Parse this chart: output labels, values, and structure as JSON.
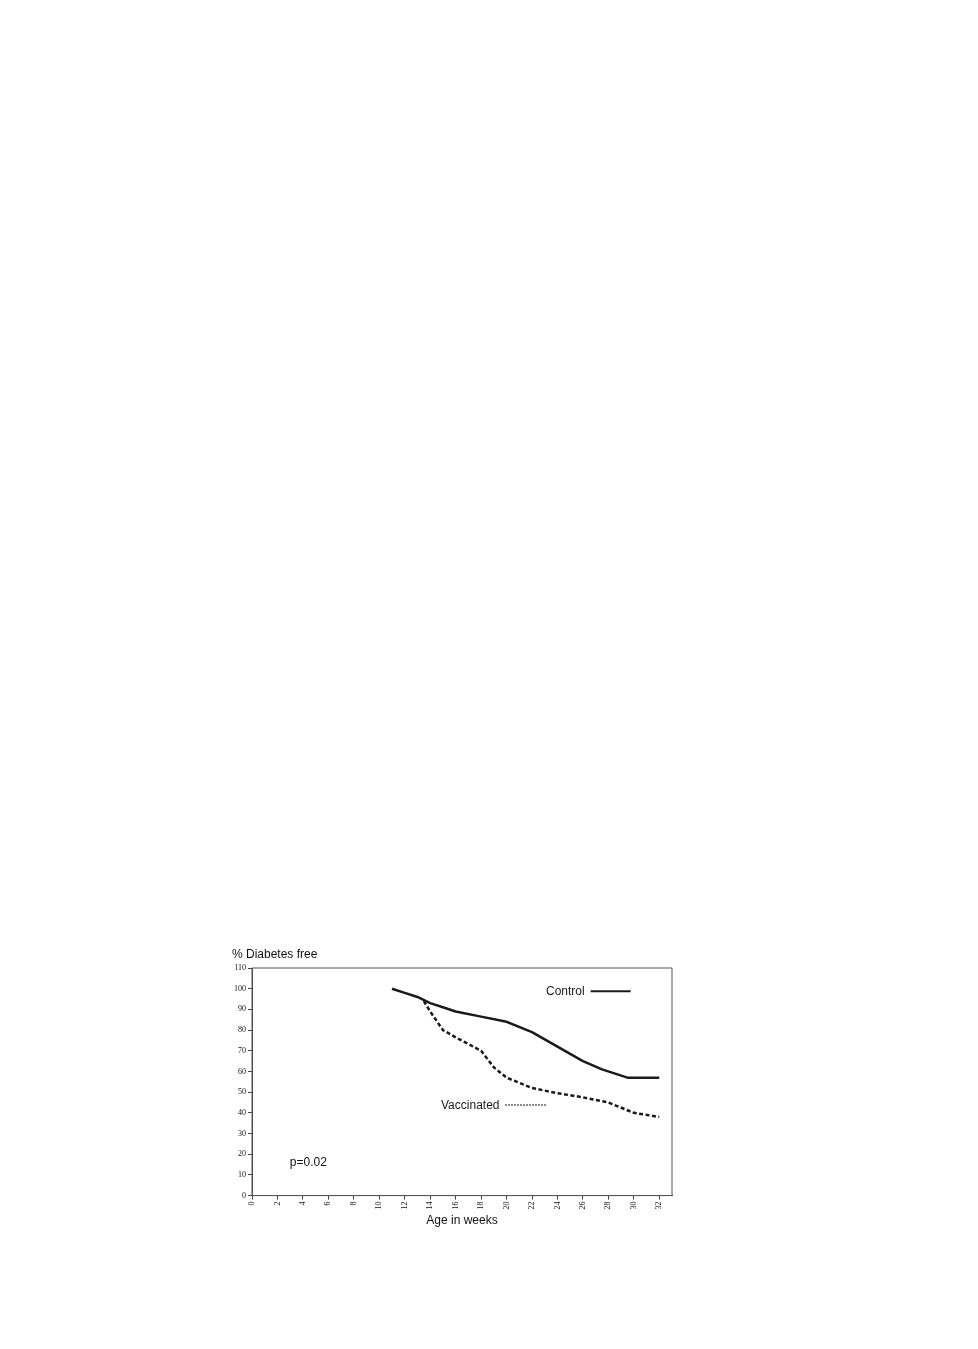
{
  "chart_data": {
    "type": "line",
    "xlabel": "Age in weeks",
    "ylabel": "% Diabetes free",
    "xlim": [
      0,
      33
    ],
    "xticks": [
      0,
      2,
      4,
      6,
      8,
      10,
      12,
      14,
      16,
      18,
      20,
      22,
      24,
      26,
      28,
      30,
      32
    ],
    "ylim": [
      0,
      110
    ],
    "yticks": [
      0,
      10,
      20,
      30,
      40,
      50,
      60,
      70,
      80,
      90,
      100,
      110
    ],
    "series": [
      {
        "name": "Control",
        "color": "#1a1a1a",
        "line_style": "solid",
        "x": [
          11,
          12,
          13,
          14,
          15,
          16,
          18,
          20,
          22,
          24,
          26,
          27.5,
          29.5,
          32
        ],
        "values": [
          100,
          98,
          96,
          93,
          91,
          89,
          86.5,
          84,
          79,
          72,
          65,
          61,
          57,
          57
        ]
      },
      {
        "name": "Vaccinated",
        "color": "#1a1a1a",
        "line_style": "dashed",
        "x": [
          13.5,
          14,
          15,
          16,
          18,
          19,
          20,
          22,
          24,
          26,
          28,
          30,
          32
        ],
        "values": [
          94,
          89,
          80,
          76.5,
          70,
          62,
          57,
          52,
          49.5,
          47.5,
          45,
          40,
          38
        ]
      }
    ],
    "annotations": [
      "p=0.02"
    ],
    "legend": "top right",
    "grid": false,
    "marker": "none"
  }
}
